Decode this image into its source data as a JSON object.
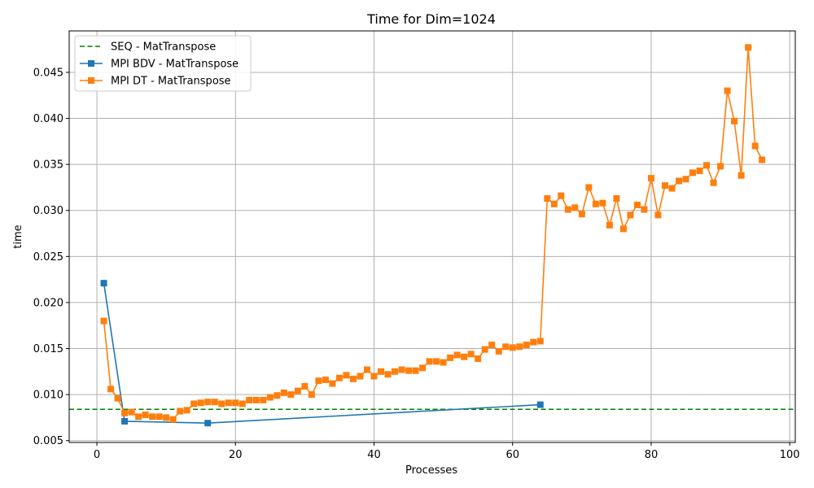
{
  "chart_data": {
    "type": "line",
    "title": "Time for Dim=1024",
    "xlabel": "Processes",
    "ylabel": "time",
    "xlim": [
      -4,
      100.8
    ],
    "ylim": [
      0.0048,
      0.0495
    ],
    "xticks": [
      0,
      20,
      40,
      60,
      80,
      100
    ],
    "xtick_labels": [
      "0",
      "20",
      "40",
      "60",
      "80",
      "100"
    ],
    "yticks": [
      0.005,
      0.01,
      0.015,
      0.02,
      0.025,
      0.03,
      0.035,
      0.04,
      0.045
    ],
    "ytick_labels": [
      "0.005",
      "0.010",
      "0.015",
      "0.020",
      "0.025",
      "0.030",
      "0.035",
      "0.040",
      "0.045"
    ],
    "grid": true,
    "legend_position": "top-left",
    "series": [
      {
        "name": "SEQ - MatTranspose",
        "kind": "hline",
        "y": 0.0084,
        "color": "#008000",
        "dashed": true
      },
      {
        "name": "MPI BDV - MatTranspose",
        "color": "#1f77b4",
        "marker": "square",
        "x": [
          1,
          4,
          16,
          64
        ],
        "y": [
          0.0221,
          0.0071,
          0.0069,
          0.0089
        ]
      },
      {
        "name": "MPI DT - MatTranspose",
        "color": "#ff7f0e",
        "marker": "square",
        "x": [
          1,
          2,
          3,
          4,
          5,
          6,
          7,
          8,
          9,
          10,
          11,
          12,
          13,
          14,
          15,
          16,
          17,
          18,
          19,
          20,
          21,
          22,
          23,
          24,
          25,
          26,
          27,
          28,
          29,
          30,
          31,
          32,
          33,
          34,
          35,
          36,
          37,
          38,
          39,
          40,
          41,
          42,
          43,
          44,
          45,
          46,
          47,
          48,
          49,
          50,
          51,
          52,
          53,
          54,
          55,
          56,
          57,
          58,
          59,
          60,
          61,
          62,
          63,
          64,
          65,
          66,
          67,
          68,
          69,
          70,
          71,
          72,
          73,
          74,
          75,
          76,
          77,
          78,
          79,
          80,
          81,
          82,
          83,
          84,
          85,
          86,
          87,
          88,
          89,
          90,
          91,
          92,
          93,
          94,
          95,
          96
        ],
        "y": [
          0.018,
          0.0106,
          0.0096,
          0.008,
          0.0081,
          0.0076,
          0.0078,
          0.0076,
          0.0076,
          0.0075,
          0.0073,
          0.0082,
          0.0083,
          0.009,
          0.0091,
          0.0092,
          0.0092,
          0.009,
          0.0091,
          0.0091,
          0.009,
          0.0094,
          0.0094,
          0.0094,
          0.0097,
          0.0099,
          0.0102,
          0.01,
          0.0104,
          0.0109,
          0.01,
          0.0115,
          0.0116,
          0.0112,
          0.0118,
          0.0121,
          0.0117,
          0.012,
          0.0127,
          0.012,
          0.0125,
          0.0122,
          0.0125,
          0.0127,
          0.0126,
          0.0126,
          0.0129,
          0.0136,
          0.0136,
          0.0135,
          0.014,
          0.0143,
          0.0141,
          0.0144,
          0.0139,
          0.0149,
          0.0154,
          0.0147,
          0.0152,
          0.0151,
          0.0152,
          0.0154,
          0.0157,
          0.0158,
          0.0313,
          0.0307,
          0.0316,
          0.0301,
          0.0303,
          0.0296,
          0.0325,
          0.0307,
          0.0308,
          0.0284,
          0.0313,
          0.028,
          0.0295,
          0.0306,
          0.0301,
          0.0335,
          0.0295,
          0.0327,
          0.0324,
          0.0332,
          0.0334,
          0.0341,
          0.0343,
          0.0349,
          0.033,
          0.0348,
          0.043,
          0.0397,
          0.0338,
          0.0477,
          0.037,
          0.0355
        ]
      }
    ]
  }
}
